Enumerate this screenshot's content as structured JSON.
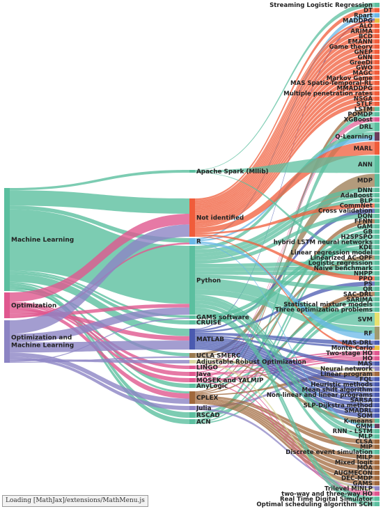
{
  "diagram": {
    "type": "sankey",
    "left_nodes": [
      {
        "id": "ml",
        "label": "Machine Learning",
        "color": "#5bbf9f",
        "weight": 145
      },
      {
        "id": "opt",
        "label": "Optimization",
        "color": "#e0578f",
        "weight": 38
      },
      {
        "id": "oml",
        "label": "Optimization and Machine Learning",
        "color": "#8c84c4",
        "weight": 60
      }
    ],
    "middle_nodes": [
      {
        "id": "spark",
        "label": "Apache Spark (Mllib)",
        "color": "#5bbf9f",
        "weight": 3
      },
      {
        "id": "ni",
        "label": "Not identified",
        "color": "#f05c3a",
        "weight": 50
      },
      {
        "id": "r",
        "label": "R",
        "color": "#6ab8e8",
        "weight": 7
      },
      {
        "id": "py",
        "label": "Python",
        "color": "#5bbf9f",
        "weight": 95
      },
      {
        "id": "gams",
        "label": "GAMS software",
        "color": "#5bbf9f",
        "weight": 3
      },
      {
        "id": "cruise",
        "label": "CRUISE",
        "color": "#5bbf9f",
        "weight": 3
      },
      {
        "id": "matlab",
        "label": "MATLAB",
        "color": "#4a5ab0",
        "weight": 28
      },
      {
        "id": "ucla",
        "label": "UCLA SMERC",
        "color": "#9a7a50",
        "weight": 3
      },
      {
        "id": "aro",
        "label": "Adjustable Robust Optimization",
        "color": "#d9d9a0",
        "weight": 2
      },
      {
        "id": "lingo",
        "label": "LINGO",
        "color": "#e0578f",
        "weight": 2
      },
      {
        "id": "java",
        "label": "Java",
        "color": "#e0578f",
        "weight": 2
      },
      {
        "id": "mosek",
        "label": "MOSEK and YALMIP",
        "color": "#e0578f",
        "weight": 2
      },
      {
        "id": "anylogic",
        "label": "AnyLogic",
        "color": "#5bbf9f",
        "weight": 2
      },
      {
        "id": "cplex",
        "label": "CPLEX",
        "color": "#a0683c",
        "weight": 12
      },
      {
        "id": "julia",
        "label": "Julia",
        "color": "#8c84c4",
        "weight": 3
      },
      {
        "id": "rscad",
        "label": "RSCAD",
        "color": "#5bbf9f",
        "weight": 3
      },
      {
        "id": "acn",
        "label": "ACN",
        "color": "#5bbf9f",
        "weight": 3
      }
    ],
    "right_nodes": [
      {
        "label": "Streaming Logistic Regression",
        "color": "#5bbf9f",
        "weight": 1
      },
      {
        "label": "DT",
        "color": "#f05c3a",
        "weight": 1
      },
      {
        "label": "Rpart",
        "color": "#6ab8e8",
        "weight": 1
      },
      {
        "label": "MADDPG",
        "color": "#e8c040",
        "weight": 1
      },
      {
        "label": "ALO",
        "color": "#f05c3a",
        "weight": 1
      },
      {
        "label": "ARIMA",
        "color": "#f05c3a",
        "weight": 1
      },
      {
        "label": "BCD",
        "color": "#f05c3a",
        "weight": 1
      },
      {
        "label": "EMANN",
        "color": "#f05c3a",
        "weight": 1
      },
      {
        "label": "Game theory",
        "color": "#f05c3a",
        "weight": 1
      },
      {
        "label": "GNEP",
        "color": "#f05c3a",
        "weight": 1
      },
      {
        "label": "GNN",
        "color": "#f05c3a",
        "weight": 1
      },
      {
        "label": "GreeDi",
        "color": "#f05c3a",
        "weight": 1
      },
      {
        "label": "GWO",
        "color": "#f05c3a",
        "weight": 1
      },
      {
        "label": "MAGC",
        "color": "#f05c3a",
        "weight": 1
      },
      {
        "label": "Markov Game",
        "color": "#f05c3a",
        "weight": 1
      },
      {
        "label": "MAS Spatio-Temporal-RL",
        "color": "#f05c3a",
        "weight": 1
      },
      {
        "label": "MMADDPG",
        "color": "#f05c3a",
        "weight": 1
      },
      {
        "label": "Multiple penetration rates",
        "color": "#f05c3a",
        "weight": 1
      },
      {
        "label": "NSGA",
        "color": "#f05c3a",
        "weight": 1
      },
      {
        "label": "STLF",
        "color": "#f05c3a",
        "weight": 1
      },
      {
        "label": "LSTM",
        "color": "#5bbf9f",
        "weight": 1
      },
      {
        "label": "POMDP",
        "color": "#5bbf9f",
        "weight": 1
      },
      {
        "label": "XGBoost",
        "color": "#e0578f",
        "weight": 1
      },
      {
        "label": "DRL",
        "color": "#5bbf9f",
        "weight": 2
      },
      {
        "label": "Q-Learning",
        "color": "#6b3c5c",
        "weight": 2
      },
      {
        "label": "MARL",
        "color": "#f05c3a",
        "weight": 3
      },
      {
        "label": "ANN",
        "color": "#5bbf9f",
        "weight": 4
      },
      {
        "label": "MDP",
        "color": "#5bbf9f",
        "weight": 3
      },
      {
        "label": "DNN",
        "color": "#5bbf9f",
        "weight": 1
      },
      {
        "label": "AdaBoost",
        "color": "#5bbf9f",
        "weight": 1
      },
      {
        "label": "BLP",
        "color": "#5bbf9f",
        "weight": 1
      },
      {
        "label": "CommNet",
        "color": "#5bbf9f",
        "weight": 1
      },
      {
        "label": "Cross validation",
        "color": "#5bbf9f",
        "weight": 1
      },
      {
        "label": "DQN",
        "color": "#5bbf9f",
        "weight": 1
      },
      {
        "label": "FFNN",
        "color": "#5bbf9f",
        "weight": 1
      },
      {
        "label": "GAM",
        "color": "#5bbf9f",
        "weight": 1
      },
      {
        "label": "GB",
        "color": "#5bbf9f",
        "weight": 1
      },
      {
        "label": "H2SPSPO",
        "color": "#5bbf9f",
        "weight": 1
      },
      {
        "label": "hybrid LSTM neural networks",
        "color": "#5bbf9f",
        "weight": 1
      },
      {
        "label": "KDE",
        "color": "#5bbf9f",
        "weight": 1
      },
      {
        "label": "Linear regression model",
        "color": "#5bbf9f",
        "weight": 1
      },
      {
        "label": "Linearized AC-OPF",
        "color": "#5bbf9f",
        "weight": 1
      },
      {
        "label": "Logistic regression",
        "color": "#5bbf9f",
        "weight": 1
      },
      {
        "label": "Naive benchmark",
        "color": "#5bbf9f",
        "weight": 1
      },
      {
        "label": "NHPP",
        "color": "#5bbf9f",
        "weight": 1
      },
      {
        "label": "PPO",
        "color": "#5bbf9f",
        "weight": 1
      },
      {
        "label": "PS",
        "color": "#5bbf9f",
        "weight": 1
      },
      {
        "label": "QR",
        "color": "#5bbf9f",
        "weight": 1
      },
      {
        "label": "SAC-DRL",
        "color": "#5bbf9f",
        "weight": 1
      },
      {
        "label": "SARIMA",
        "color": "#5bbf9f",
        "weight": 1
      },
      {
        "label": "Statistical mixture models",
        "color": "#5bbf9f",
        "weight": 1
      },
      {
        "label": "Three optimization problems",
        "color": "#5bbf9f",
        "weight": 1
      },
      {
        "label": "SVM",
        "color": "#e8e070",
        "weight": 3
      },
      {
        "label": "RF",
        "color": "#a09a70",
        "weight": 3
      },
      {
        "label": "MAS-DRL",
        "color": "#4a5ab0",
        "weight": 1
      },
      {
        "label": "Monte-Carlo",
        "color": "#e8c040",
        "weight": 1
      },
      {
        "label": "Two-stage HO",
        "color": "#e0578f",
        "weight": 1
      },
      {
        "label": "HO",
        "color": "#e0578f",
        "weight": 1
      },
      {
        "label": "MAS",
        "color": "#4a5ab0",
        "weight": 1
      },
      {
        "label": "Neural network",
        "color": "#8c84c4",
        "weight": 1
      },
      {
        "label": "Linear program",
        "color": "#a0683c",
        "weight": 1
      },
      {
        "label": "FQL",
        "color": "#4a5ab0",
        "weight": 1
      },
      {
        "label": "Heuristic methods",
        "color": "#4a5ab0",
        "weight": 1
      },
      {
        "label": "Mean shift algorithm",
        "color": "#4a5ab0",
        "weight": 1
      },
      {
        "label": "Non-linear and linear programs",
        "color": "#4a5ab0",
        "weight": 1
      },
      {
        "label": "SARSA",
        "color": "#4a5ab0",
        "weight": 1
      },
      {
        "label": "SLP-Dijkstra method",
        "color": "#4a5ab0",
        "weight": 1
      },
      {
        "label": "SMADRL",
        "color": "#4a5ab0",
        "weight": 1
      },
      {
        "label": "SOM",
        "color": "#4a5ab0",
        "weight": 1
      },
      {
        "label": "K-means",
        "color": "#5bbf9f",
        "weight": 1
      },
      {
        "label": "GMM",
        "color": "#6b3c5c",
        "weight": 1
      },
      {
        "label": "RNN – LSTM",
        "color": "#5bbf9f",
        "weight": 1
      },
      {
        "label": "MLP",
        "color": "#5bbf9f",
        "weight": 1
      },
      {
        "label": "CLSA",
        "color": "#a0683c",
        "weight": 1
      },
      {
        "label": "MIP",
        "color": "#a0683c",
        "weight": 1
      },
      {
        "label": "Discrete event simulation",
        "color": "#5bbf9f",
        "weight": 1
      },
      {
        "label": "MILP",
        "color": "#a0683c",
        "weight": 1
      },
      {
        "label": "Mixed logit",
        "color": "#a0683c",
        "weight": 1
      },
      {
        "label": "MOA",
        "color": "#a0683c",
        "weight": 1
      },
      {
        "label": "AUGMECON",
        "color": "#a0683c",
        "weight": 1
      },
      {
        "label": "DEC-MDP",
        "color": "#a0683c",
        "weight": 1
      },
      {
        "label": "GAMS",
        "color": "#a0683c",
        "weight": 1
      },
      {
        "label": "Trilevel MINLP",
        "color": "#8c84c4",
        "weight": 1
      },
      {
        "label": "two-way and three-way HO",
        "color": "#e0578f",
        "weight": 1
      },
      {
        "label": "Real Time Digital Simulator",
        "color": "#5bbf9f",
        "weight": 1
      },
      {
        "label": "Optimal scheduling algorithm SCH",
        "color": "#5bbf9f",
        "weight": 1
      }
    ],
    "links_left_to_middle": [
      [
        "ml",
        "spark",
        3
      ],
      [
        "ml",
        "ni",
        20
      ],
      [
        "ml",
        "r",
        5
      ],
      [
        "ml",
        "py",
        80
      ],
      [
        "ml",
        "gams",
        2
      ],
      [
        "ml",
        "cruise",
        3
      ],
      [
        "ml",
        "matlab",
        10
      ],
      [
        "ml",
        "anylogic",
        2
      ],
      [
        "ml",
        "rscad",
        3
      ],
      [
        "ml",
        "acn",
        3
      ],
      [
        "ml",
        "ucla",
        2
      ],
      [
        "ml",
        "cplex",
        2
      ],
      [
        "opt",
        "ni",
        14
      ],
      [
        "opt",
        "lingo",
        2
      ],
      [
        "opt",
        "java",
        2
      ],
      [
        "opt",
        "mosek",
        2
      ],
      [
        "opt",
        "cplex",
        5
      ],
      [
        "opt",
        "matlab",
        6
      ],
      [
        "opt",
        "py",
        5
      ],
      [
        "opt",
        "r",
        2
      ],
      [
        "oml",
        "ni",
        16
      ],
      [
        "oml",
        "py",
        10
      ],
      [
        "oml",
        "matlab",
        12
      ],
      [
        "oml",
        "cplex",
        5
      ],
      [
        "oml",
        "julia",
        3
      ],
      [
        "oml",
        "aro",
        2
      ],
      [
        "oml",
        "gams",
        1
      ],
      [
        "oml",
        "ucla",
        1
      ]
    ]
  },
  "status": {
    "text": "Loading [MathJax]/extensions/MathMenu.js"
  }
}
